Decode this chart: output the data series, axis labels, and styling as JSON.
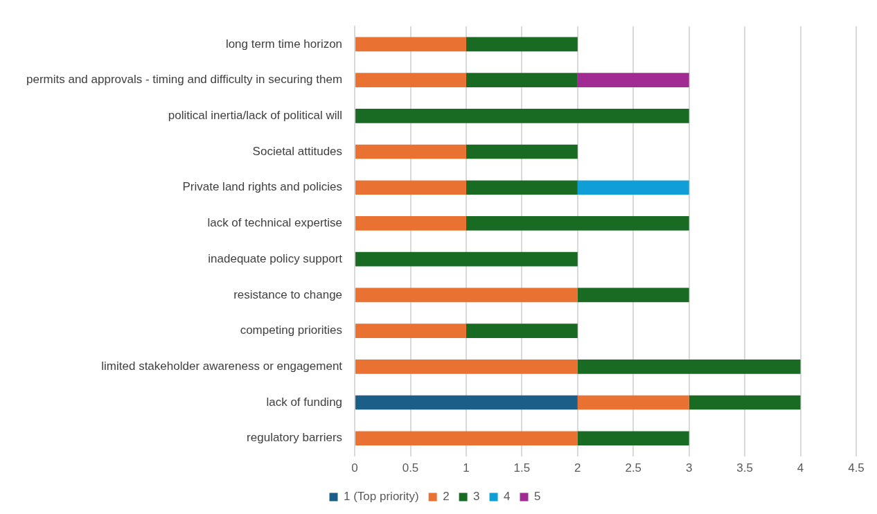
{
  "chart_data": {
    "type": "bar",
    "orientation": "horizontal",
    "stacked": true,
    "categories": [
      "long term time horizon",
      "permits and approvals - timing and difficulty in securing them",
      "political inertia/lack of political will",
      "Societal attitudes",
      "Private land rights and policies",
      "lack of technical expertise",
      "inadequate policy support",
      "resistance to change",
      "competing priorities",
      "limited stakeholder awareness or engagement",
      "lack of funding",
      "regulatory barriers"
    ],
    "series": [
      {
        "name": "1 (Top priority)",
        "color": "#1b5e87",
        "values": [
          null,
          null,
          null,
          null,
          null,
          null,
          null,
          null,
          null,
          null,
          2,
          null
        ]
      },
      {
        "name": "2",
        "color": "#e97132",
        "values": [
          1,
          1,
          null,
          1,
          1,
          1,
          null,
          2,
          1,
          2,
          1,
          2
        ]
      },
      {
        "name": "3",
        "color": "#196b24",
        "values": [
          1,
          1,
          3,
          1,
          1,
          2,
          2,
          1,
          1,
          2,
          1,
          1
        ]
      },
      {
        "name": "4",
        "color": "#0f9ed5",
        "values": [
          null,
          null,
          null,
          null,
          1,
          null,
          null,
          null,
          null,
          null,
          null,
          null
        ]
      },
      {
        "name": "5",
        "color": "#a02b93",
        "values": [
          null,
          1,
          null,
          null,
          null,
          null,
          null,
          null,
          null,
          null,
          null,
          null
        ]
      }
    ],
    "xlim": [
      0,
      4.5
    ],
    "xticks": [
      0,
      0.5,
      1,
      1.5,
      2,
      2.5,
      3,
      3.5,
      4,
      4.5
    ],
    "grid": "x",
    "legend": "bottom"
  }
}
